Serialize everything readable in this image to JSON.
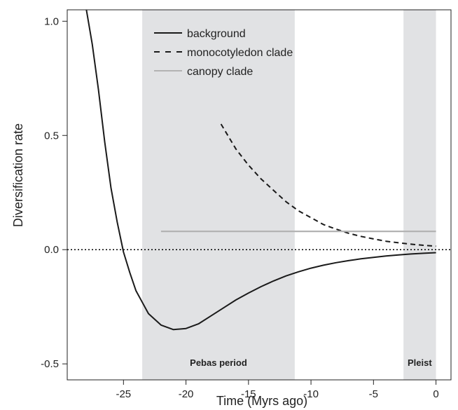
{
  "chart_data": {
    "type": "line",
    "xlabel": "Time (Myrs ago)",
    "ylabel": "Diversification rate",
    "xlim": [
      -29.5,
      1.2
    ],
    "ylim": [
      -0.57,
      1.05
    ],
    "x_ticks": [
      -25,
      -20,
      -15,
      -10,
      -5,
      0
    ],
    "y_ticks": [
      -0.5,
      0.0,
      0.5,
      1.0
    ],
    "x_tick_labels": [
      "-25",
      "-20",
      "-15",
      "-10",
      "-5",
      "0"
    ],
    "y_tick_labels": [
      "-0.5",
      "0.0",
      "0.5",
      "1.0"
    ],
    "grid": false,
    "legend_position": "top-left",
    "reference_line": {
      "y": 0,
      "style": "dotted"
    },
    "shaded_regions": [
      {
        "label": "Pebas period",
        "x_start": -23.5,
        "x_end": -11.3,
        "color": "#e1e2e4"
      },
      {
        "label": "Pleist",
        "x_start": -2.6,
        "x_end": 0,
        "color": "#e1e2e4"
      }
    ],
    "series": [
      {
        "name": "background",
        "style": "solid",
        "color": "#1a1a1a",
        "x": [
          -28,
          -27.5,
          -27,
          -26.5,
          -26,
          -25.5,
          -25,
          -24.5,
          -24,
          -23.5,
          -23,
          -22,
          -21,
          -20,
          -19,
          -18,
          -17,
          -16,
          -15,
          -14,
          -13,
          -12,
          -11,
          -10,
          -9,
          -8,
          -7,
          -6,
          -5,
          -4,
          -3,
          -2,
          -1,
          0
        ],
        "y": [
          1.06,
          0.9,
          0.7,
          0.47,
          0.27,
          0.12,
          -0.01,
          -0.1,
          -0.18,
          -0.23,
          -0.28,
          -0.33,
          -0.35,
          -0.345,
          -0.325,
          -0.29,
          -0.255,
          -0.22,
          -0.19,
          -0.162,
          -0.137,
          -0.115,
          -0.097,
          -0.081,
          -0.068,
          -0.057,
          -0.048,
          -0.04,
          -0.034,
          -0.028,
          -0.023,
          -0.019,
          -0.016,
          -0.013
        ]
      },
      {
        "name": "monocotyledon clade",
        "style": "dashed",
        "color": "#1a1a1a",
        "x": [
          -17.2,
          -16,
          -15,
          -14,
          -13,
          -12,
          -11,
          -10,
          -9,
          -8,
          -7,
          -6,
          -5,
          -4,
          -3,
          -2,
          -1,
          0
        ],
        "y": [
          0.55,
          0.44,
          0.37,
          0.31,
          0.26,
          0.21,
          0.17,
          0.14,
          0.11,
          0.09,
          0.072,
          0.058,
          0.047,
          0.037,
          0.03,
          0.024,
          0.019,
          0.015
        ]
      },
      {
        "name": "canopy clade",
        "style": "solid",
        "color": "#b3b3b3",
        "x": [
          -22,
          0
        ],
        "y": [
          0.08,
          0.08
        ]
      }
    ]
  }
}
